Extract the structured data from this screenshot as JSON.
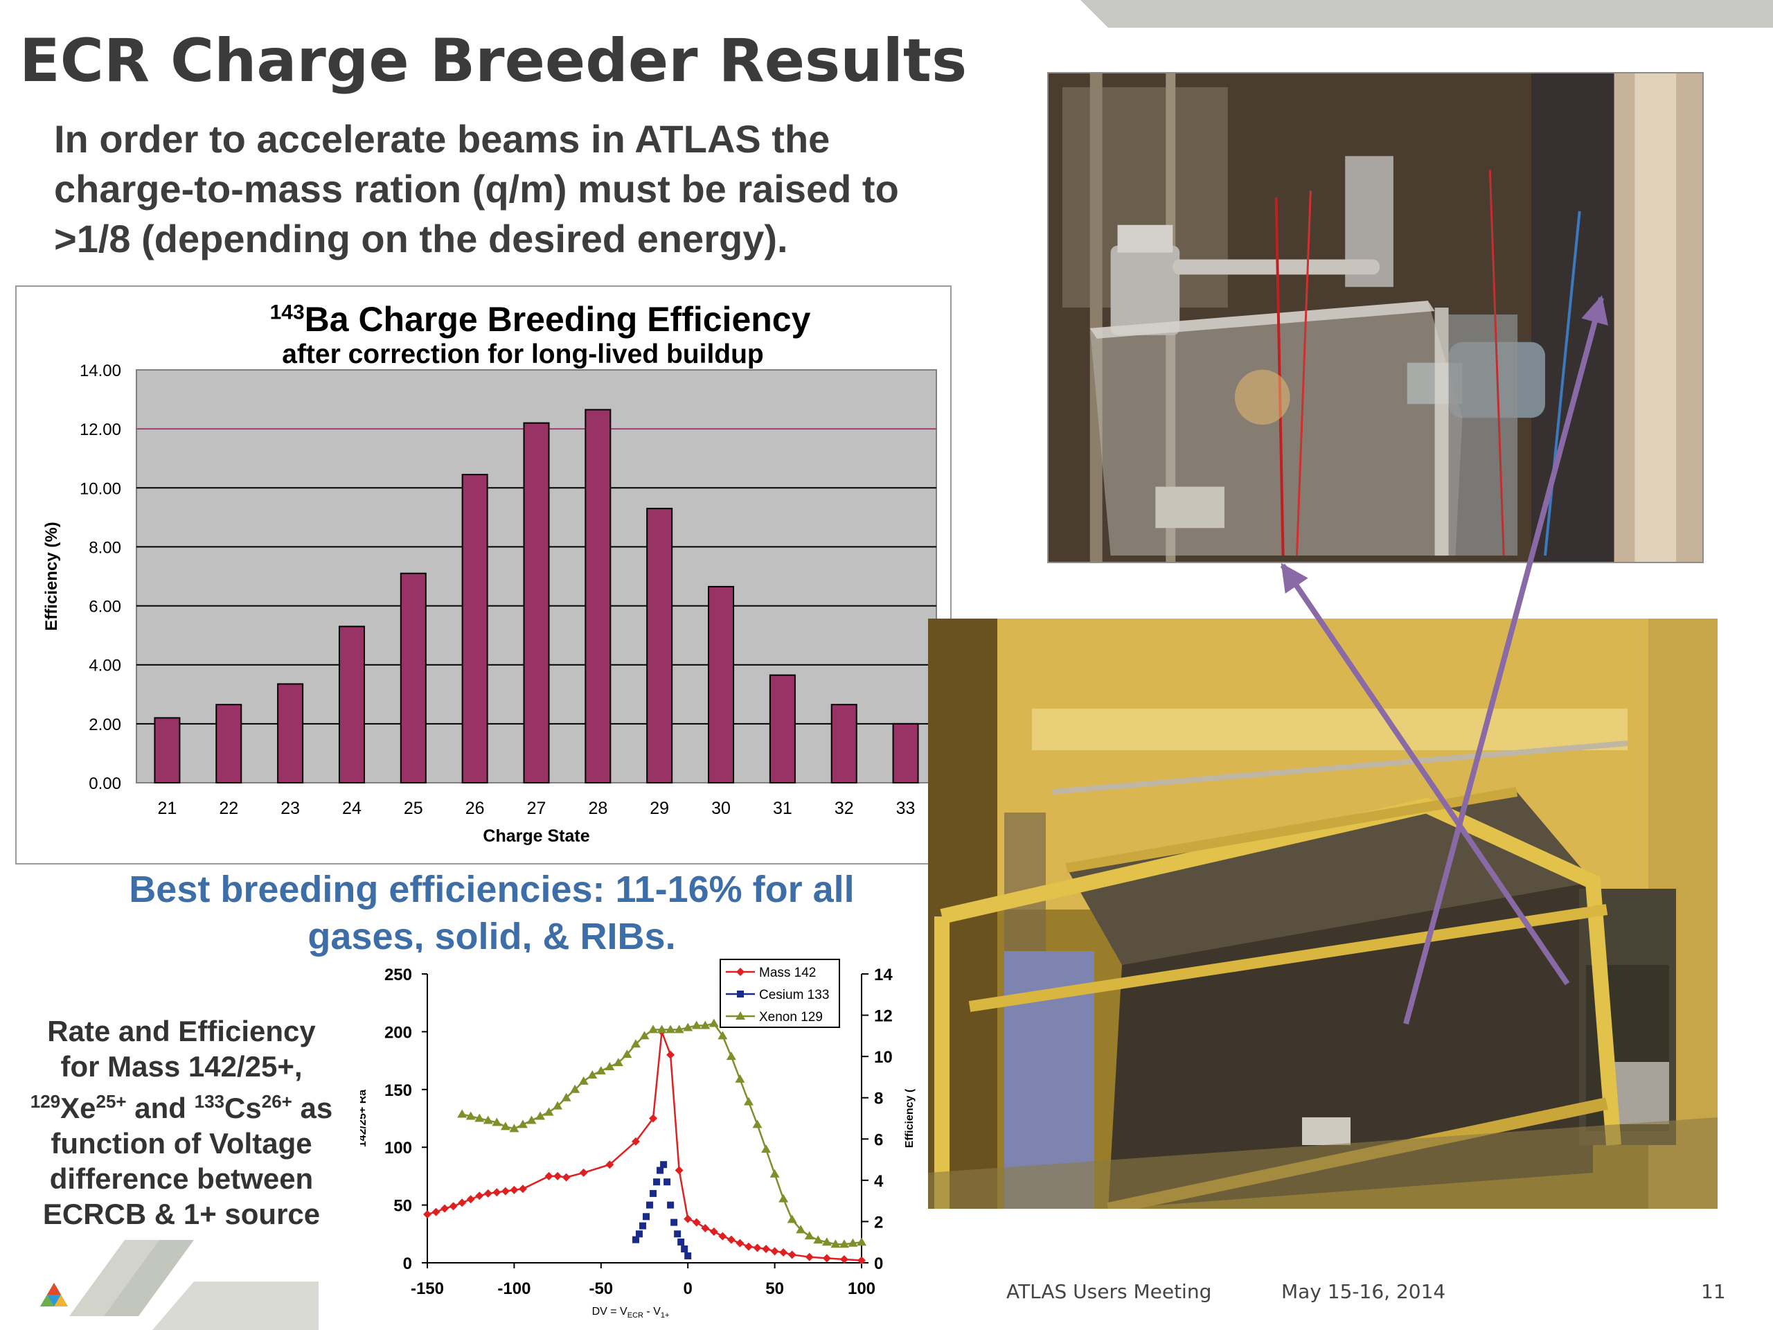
{
  "slide": {
    "title": "ECR Charge Breeder Results",
    "intro": "In order to accelerate beams in ATLAS the charge-to-mass ration (q/m) must be raised to >1/8 (depending on the desired energy).",
    "best_line1": "Best breeding efficiencies:  11-16% for all",
    "best_line2": "gases, solid, & RIBs.",
    "side_l1": "Rate and Efficiency",
    "side_l2": "for Mass 142/25+,",
    "side_l3a": "129",
    "side_l3b": "Xe",
    "side_l3c": "25+",
    "side_l3d": " and ",
    "side_l3e": "133",
    "side_l3f": "Cs",
    "side_l3g": "26+",
    "side_l3h": " as",
    "side_l4": "function of Voltage",
    "side_l5": "difference between",
    "side_l6": "ECRCB & 1+ source"
  },
  "footer": {
    "meeting": "ATLAS Users Meeting",
    "date": "May 15-16, 2014",
    "page": "11"
  },
  "colors": {
    "bar": "#993366",
    "plot_bg": "#c0c0c0",
    "mass": "#e02020",
    "cesium": "#1a2a8a",
    "xenon": "#7f8f2a",
    "arrow": "#8a6aa6"
  },
  "chart_data": [
    {
      "type": "bar",
      "title_sup": "143",
      "title_main": "Ba Charge Breeding Efficiency",
      "subtitle": "after correction for long-lived buildup",
      "xlabel": "Charge State",
      "ylabel": "Efficiency (%)",
      "categories": [
        "21",
        "22",
        "23",
        "24",
        "25",
        "26",
        "27",
        "28",
        "29",
        "30",
        "31",
        "32",
        "33"
      ],
      "values": [
        2.2,
        2.65,
        3.35,
        5.3,
        7.1,
        10.45,
        12.2,
        12.65,
        9.3,
        6.65,
        3.65,
        2.65,
        2.0
      ],
      "ylim": [
        0,
        14
      ],
      "yticks": [
        "0.00",
        "2.00",
        "4.00",
        "6.00",
        "8.00",
        "10.00",
        "12.00",
        "14.00"
      ],
      "grid": true
    },
    {
      "type": "line",
      "xlabel": "DV = V",
      "xlabel_sub1": "ECR",
      "xlabel_mid": " - V",
      "xlabel_sub2": "1+",
      "ylabel_left": "142/25+ Ra",
      "ylabel_right": "Efficiency (",
      "xlim": [
        -150,
        100
      ],
      "ylim_left": [
        0,
        250
      ],
      "ylim_right": [
        0,
        14
      ],
      "xticks": [
        "-150",
        "-100",
        "-50",
        "0",
        "50",
        "100"
      ],
      "yticks_left": [
        "0",
        "50",
        "100",
        "150",
        "200",
        "250"
      ],
      "yticks_right": [
        "0",
        "2",
        "4",
        "6",
        "8",
        "10",
        "12",
        "14"
      ],
      "legend_position": "top-right",
      "series": [
        {
          "name": "Mass 142",
          "axis": "left",
          "x": [
            -150,
            -145,
            -140,
            -135,
            -130,
            -125,
            -120,
            -115,
            -110,
            -105,
            -100,
            -95,
            -80,
            -75,
            -70,
            -60,
            -45,
            -30,
            -20,
            -15,
            -10,
            -5,
            0,
            5,
            10,
            15,
            20,
            25,
            30,
            35,
            40,
            45,
            50,
            55,
            60,
            70,
            80,
            90,
            100
          ],
          "y": [
            42,
            44,
            47,
            49,
            52,
            55,
            58,
            60,
            61,
            62,
            63,
            64,
            75,
            75,
            74,
            78,
            85,
            105,
            125,
            200,
            180,
            80,
            38,
            35,
            30,
            27,
            23,
            20,
            17,
            14,
            13,
            12,
            10,
            9,
            7,
            5,
            4,
            3,
            2
          ]
        },
        {
          "name": "Cesium 133",
          "axis": "left",
          "x": [
            -30,
            -28,
            -26,
            -24,
            -22,
            -20,
            -18,
            -16,
            -14,
            -12,
            -10,
            -8,
            -6,
            -4,
            -2,
            0
          ],
          "y": [
            20,
            25,
            32,
            40,
            50,
            60,
            70,
            80,
            85,
            70,
            50,
            35,
            25,
            18,
            12,
            6
          ]
        },
        {
          "name": "Xenon 129",
          "axis": "right",
          "x": [
            -130,
            -125,
            -120,
            -115,
            -110,
            -105,
            -100,
            -95,
            -90,
            -85,
            -80,
            -75,
            -70,
            -65,
            -60,
            -55,
            -50,
            -45,
            -40,
            -35,
            -30,
            -25,
            -20,
            -15,
            -10,
            -5,
            0,
            5,
            10,
            15,
            20,
            25,
            30,
            35,
            40,
            45,
            50,
            55,
            60,
            65,
            70,
            75,
            80,
            85,
            90,
            95,
            100
          ],
          "y": [
            7.2,
            7.1,
            7.0,
            6.9,
            6.8,
            6.6,
            6.5,
            6.7,
            6.9,
            7.1,
            7.3,
            7.6,
            8.0,
            8.4,
            8.8,
            9.1,
            9.3,
            9.5,
            9.7,
            10.1,
            10.6,
            11.0,
            11.3,
            11.3,
            11.3,
            11.3,
            11.4,
            11.5,
            11.5,
            11.6,
            11.0,
            10.0,
            8.9,
            7.8,
            6.7,
            5.5,
            4.3,
            3.1,
            2.1,
            1.6,
            1.3,
            1.1,
            1.0,
            0.9,
            0.9,
            0.95,
            1.0
          ]
        }
      ]
    }
  ]
}
